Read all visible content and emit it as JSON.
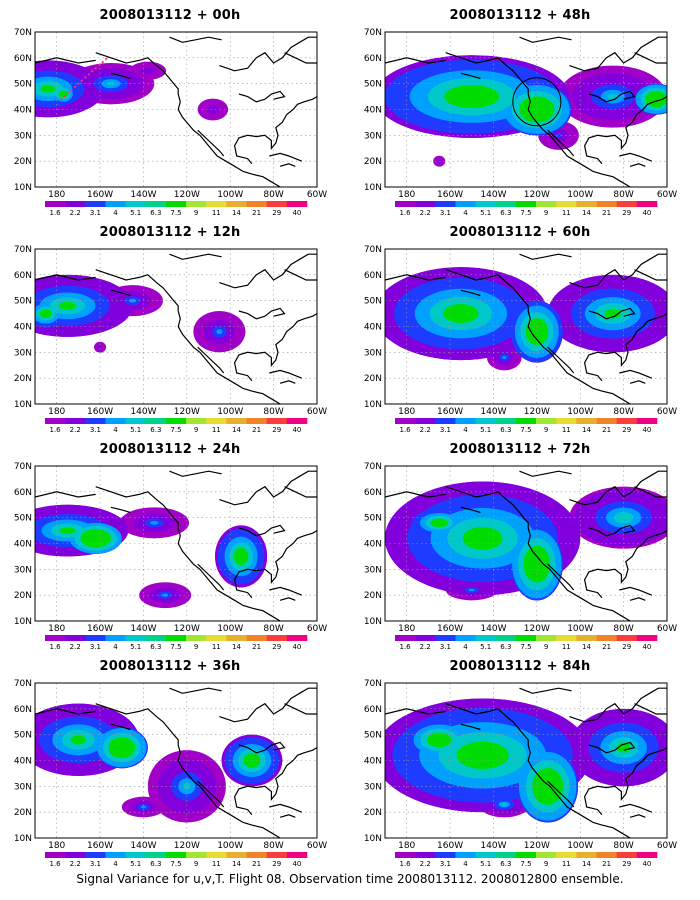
{
  "colorbar": {
    "labels": [
      "1.6",
      "2.2",
      "3.1",
      "4",
      "5.1",
      "6.3",
      "7.5",
      "9",
      "11",
      "14",
      "21",
      "29",
      "40"
    ],
    "colors": [
      "#a000c8",
      "#8200dc",
      "#1e3cff",
      "#00a0ff",
      "#00c8c8",
      "#00d28c",
      "#00dc00",
      "#a0e632",
      "#e6dc32",
      "#e6af2d",
      "#f08228",
      "#fa3c3c",
      "#f00082"
    ]
  },
  "axes": {
    "lon_labels": [
      "180",
      "160W",
      "140W",
      "120W",
      "100W",
      "80W",
      "60W"
    ],
    "lat_labels": [
      "10N",
      "20N",
      "30N",
      "40N",
      "50N",
      "60N",
      "70N"
    ]
  },
  "panels": [
    {
      "title": "2008013112 + 00h"
    },
    {
      "title": "2008013112 + 48h"
    },
    {
      "title": "2008013112 + 12h"
    },
    {
      "title": "2008013112 + 60h"
    },
    {
      "title": "2008013112 + 24h"
    },
    {
      "title": "2008013112 + 72h"
    },
    {
      "title": "2008013112 + 36h"
    },
    {
      "title": "2008013112 + 84h"
    }
  ],
  "caption": "Signal Variance for u,v,T. Flight 08. Observation time 2008013112. 2008012800 ensemble."
}
